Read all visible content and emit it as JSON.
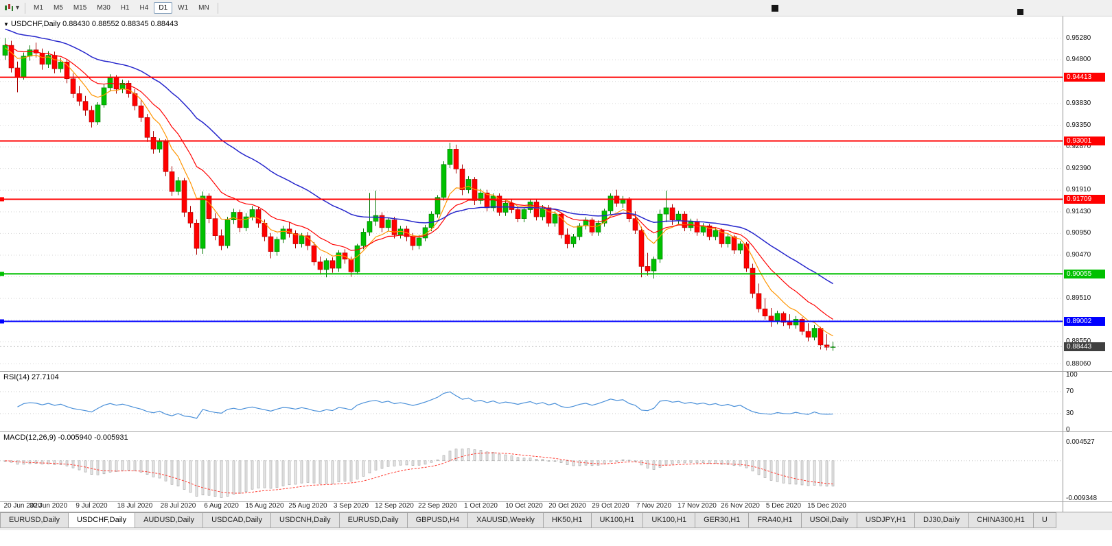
{
  "toolbar": {
    "timeframes": [
      "M1",
      "M5",
      "M15",
      "M30",
      "H1",
      "H4",
      "D1",
      "W1",
      "MN"
    ],
    "active_timeframe": "D1"
  },
  "chart": {
    "title_text": "USDCHF,Daily 0.88430 0.88552 0.88345 0.88443",
    "symbol": "USDCHF",
    "period": "Daily",
    "open": "0.88430",
    "high": "0.88552",
    "low": "0.88345",
    "close": "0.88443"
  },
  "colors": {
    "bull": "#00c000",
    "bull_edge": "#007700",
    "bear": "#ff0000",
    "bear_edge": "#aa0000",
    "ma_slow_blue": "#2727cc",
    "ma_mid_red": "#ff0000",
    "ma_fast_orange": "#ff9500",
    "rsi_line": "#4a90d9",
    "macd_signal": "#ff3b30",
    "grid": "#d4d4d4",
    "level_red": "#ff0000",
    "level_green": "#00c000",
    "level_blue": "#0000ff",
    "current_badge": "#3f3f3f"
  },
  "price_axis": {
    "gridlines": [
      "0.95280",
      "0.94800",
      "0.94320",
      "0.93830",
      "0.93350",
      "0.92870",
      "0.92390",
      "0.91910",
      "0.91430",
      "0.90950",
      "0.90470",
      "0.89990",
      "0.89510",
      "0.89030",
      "0.88550",
      "0.88060"
    ],
    "badges": [
      {
        "text": "0.94413",
        "price": 0.94413,
        "color": "#ff0000",
        "kind": "resistance"
      },
      {
        "text": "0.93001",
        "price": 0.93001,
        "color": "#ff0000",
        "kind": "resistance"
      },
      {
        "text": "0.91709",
        "price": 0.91709,
        "color": "#ff0000",
        "kind": "resistance"
      },
      {
        "text": "0.90055",
        "price": 0.90055,
        "color": "#00c000",
        "kind": "support"
      },
      {
        "text": "0.89002",
        "price": 0.89002,
        "color": "#0000ff",
        "kind": "support"
      },
      {
        "text": "0.88443",
        "price": 0.88443,
        "color": "#3f3f3f",
        "kind": "current-price"
      }
    ]
  },
  "levels": [
    {
      "price": 0.94413,
      "color": "#ff0000",
      "handle": false
    },
    {
      "price": 0.93001,
      "color": "#ff0000",
      "handle": false
    },
    {
      "price": 0.91709,
      "color": "#ff0000",
      "handle": true
    },
    {
      "price": 0.90055,
      "color": "#00c000",
      "handle": true
    },
    {
      "price": 0.89002,
      "color": "#0000ff",
      "handle": true
    }
  ],
  "current_price": 0.88443,
  "indicators": {
    "rsi": {
      "label": "RSI(14) 27.7104",
      "name": "RSI",
      "period": 14,
      "value": "27.7104",
      "scale_labels": [
        "100",
        "70",
        "30",
        "0"
      ],
      "level_lines": [
        70,
        30
      ]
    },
    "macd": {
      "label": "MACD(12,26,9) -0.005940 -0.005931",
      "name": "MACD",
      "params": "12,26,9",
      "main_value": "-0.005940",
      "signal_value": "-0.005931",
      "scale_labels": [
        "0.004527",
        "-0.009348"
      ]
    }
  },
  "date_axis": {
    "labels": [
      "20 Jun 2020",
      "30 Jun 2020",
      "9 Jul 2020",
      "18 Jul 2020",
      "28 Jul 2020",
      "6 Aug 2020",
      "15 Aug 2020",
      "25 Aug 2020",
      "3 Sep 2020",
      "12 Sep 2020",
      "22 Sep 2020",
      "1 Oct 2020",
      "10 Oct 2020",
      "20 Oct 2020",
      "29 Oct 2020",
      "7 Nov 2020",
      "17 Nov 2020",
      "26 Nov 2020",
      "5 Dec 2020",
      "15 Dec 2020"
    ],
    "candle_indices": [
      0,
      7,
      14,
      21,
      28,
      35,
      42,
      49,
      56,
      63,
      70,
      77,
      84,
      91,
      98,
      105,
      112,
      119,
      126,
      133
    ]
  },
  "tabs": {
    "items": [
      "EURUSD,Daily",
      "USDCHF,Daily",
      "AUDUSD,Daily",
      "USDCAD,Daily",
      "USDCNH,Daily",
      "EURUSD,Daily",
      "GBPUSD,H4",
      "XAUUSD,Weekly",
      "HK50,H1",
      "UK100,H1",
      "UK100,H1",
      "GER30,H1",
      "FRA40,H1",
      "USOil,Daily",
      "USDJPY,H1",
      "DJ30,Daily",
      "CHINA300,H1",
      "U"
    ],
    "active_index": 1
  },
  "chart_data": {
    "type": "candlestick",
    "symbol": "USDCHF",
    "timeframe": "Daily",
    "ylim": [
      0.879,
      0.9576
    ],
    "candles": [
      [
        0.949,
        0.9528,
        0.948,
        0.9512
      ],
      [
        0.9512,
        0.9522,
        0.9452,
        0.9462
      ],
      [
        0.9462,
        0.9476,
        0.9408,
        0.9442
      ],
      [
        0.9442,
        0.9496,
        0.9436,
        0.9488
      ],
      [
        0.9488,
        0.9512,
        0.9478,
        0.9502
      ],
      [
        0.9502,
        0.9518,
        0.9485,
        0.9495
      ],
      [
        0.9495,
        0.9505,
        0.9458,
        0.947
      ],
      [
        0.947,
        0.9499,
        0.9462,
        0.949
      ],
      [
        0.949,
        0.9498,
        0.945,
        0.946
      ],
      [
        0.946,
        0.9484,
        0.9452,
        0.9475
      ],
      [
        0.9475,
        0.9481,
        0.9428,
        0.9438
      ],
      [
        0.9438,
        0.945,
        0.9395,
        0.9405
      ],
      [
        0.9405,
        0.9422,
        0.9378,
        0.9388
      ],
      [
        0.9388,
        0.94,
        0.9356,
        0.9368
      ],
      [
        0.9368,
        0.9378,
        0.933,
        0.9342
      ],
      [
        0.9342,
        0.9386,
        0.9336,
        0.938
      ],
      [
        0.938,
        0.9426,
        0.9374,
        0.9418
      ],
      [
        0.9418,
        0.9448,
        0.941,
        0.944
      ],
      [
        0.944,
        0.9446,
        0.9405,
        0.9415
      ],
      [
        0.9415,
        0.9436,
        0.9406,
        0.9428
      ],
      [
        0.9428,
        0.9434,
        0.9396,
        0.9405
      ],
      [
        0.9405,
        0.9415,
        0.9368,
        0.9378
      ],
      [
        0.9378,
        0.939,
        0.9342,
        0.9352
      ],
      [
        0.9352,
        0.936,
        0.9298,
        0.9308
      ],
      [
        0.9308,
        0.9322,
        0.9272,
        0.9282
      ],
      [
        0.9282,
        0.9306,
        0.9274,
        0.9298
      ],
      [
        0.9298,
        0.9304,
        0.9222,
        0.9232
      ],
      [
        0.9232,
        0.9244,
        0.9178,
        0.9188
      ],
      [
        0.9188,
        0.922,
        0.918,
        0.9212
      ],
      [
        0.9212,
        0.9218,
        0.9132,
        0.9142
      ],
      [
        0.9142,
        0.9156,
        0.9108,
        0.9118
      ],
      [
        0.9118,
        0.9126,
        0.9048,
        0.9062
      ],
      [
        0.9062,
        0.9188,
        0.905,
        0.9178
      ],
      [
        0.9178,
        0.9184,
        0.9118,
        0.9128
      ],
      [
        0.9128,
        0.914,
        0.908,
        0.909
      ],
      [
        0.909,
        0.9104,
        0.9058,
        0.9068
      ],
      [
        0.9068,
        0.9132,
        0.9062,
        0.9125
      ],
      [
        0.9125,
        0.915,
        0.9116,
        0.9142
      ],
      [
        0.9142,
        0.9148,
        0.9098,
        0.9108
      ],
      [
        0.9108,
        0.914,
        0.91,
        0.9132
      ],
      [
        0.9132,
        0.9156,
        0.9124,
        0.9148
      ],
      [
        0.9148,
        0.9154,
        0.9108,
        0.9118
      ],
      [
        0.9118,
        0.9126,
        0.9078,
        0.9088
      ],
      [
        0.9088,
        0.9096,
        0.904,
        0.9055
      ],
      [
        0.9055,
        0.9088,
        0.9046,
        0.9082
      ],
      [
        0.9082,
        0.9112,
        0.9074,
        0.9105
      ],
      [
        0.9105,
        0.912,
        0.9086,
        0.9095
      ],
      [
        0.9095,
        0.9102,
        0.9062,
        0.9072
      ],
      [
        0.9072,
        0.9096,
        0.9064,
        0.909
      ],
      [
        0.909,
        0.9098,
        0.9058,
        0.9068
      ],
      [
        0.9068,
        0.9076,
        0.9024,
        0.9032
      ],
      [
        0.9032,
        0.9044,
        0.9004,
        0.9015
      ],
      [
        0.9015,
        0.904,
        0.8998,
        0.9035
      ],
      [
        0.9035,
        0.9042,
        0.9008,
        0.9018
      ],
      [
        0.9018,
        0.9058,
        0.901,
        0.9052
      ],
      [
        0.9052,
        0.906,
        0.9028,
        0.9038
      ],
      [
        0.9038,
        0.9044,
        0.8999,
        0.901
      ],
      [
        0.901,
        0.9072,
        0.9004,
        0.9068
      ],
      [
        0.9068,
        0.9106,
        0.906,
        0.9098
      ],
      [
        0.9098,
        0.9185,
        0.909,
        0.9122
      ],
      [
        0.9122,
        0.919,
        0.9112,
        0.9135
      ],
      [
        0.9135,
        0.9142,
        0.9098,
        0.9108
      ],
      [
        0.9108,
        0.913,
        0.91,
        0.9125
      ],
      [
        0.9125,
        0.9132,
        0.9084,
        0.9092
      ],
      [
        0.9092,
        0.9112,
        0.9084,
        0.9105
      ],
      [
        0.9105,
        0.9112,
        0.9078,
        0.9088
      ],
      [
        0.9088,
        0.9096,
        0.9058,
        0.9068
      ],
      [
        0.9068,
        0.9092,
        0.906,
        0.9085
      ],
      [
        0.9085,
        0.9114,
        0.9078,
        0.9108
      ],
      [
        0.9108,
        0.9144,
        0.91,
        0.9138
      ],
      [
        0.9138,
        0.918,
        0.913,
        0.9175
      ],
      [
        0.9175,
        0.9255,
        0.9168,
        0.9248
      ],
      [
        0.9248,
        0.9296,
        0.924,
        0.9282
      ],
      [
        0.9282,
        0.9292,
        0.9228,
        0.9238
      ],
      [
        0.9238,
        0.9248,
        0.918,
        0.9192
      ],
      [
        0.9192,
        0.9222,
        0.9184,
        0.9215
      ],
      [
        0.9215,
        0.922,
        0.9158,
        0.9168
      ],
      [
        0.9168,
        0.9194,
        0.916,
        0.9185
      ],
      [
        0.9185,
        0.9192,
        0.9144,
        0.9152
      ],
      [
        0.9152,
        0.9184,
        0.9144,
        0.9178
      ],
      [
        0.9178,
        0.9184,
        0.9134,
        0.9142
      ],
      [
        0.9142,
        0.9168,
        0.9134,
        0.9162
      ],
      [
        0.9162,
        0.917,
        0.914,
        0.9148
      ],
      [
        0.9148,
        0.9156,
        0.912,
        0.9128
      ],
      [
        0.9128,
        0.9154,
        0.912,
        0.9148
      ],
      [
        0.9148,
        0.9172,
        0.914,
        0.9165
      ],
      [
        0.9165,
        0.917,
        0.9124,
        0.9132
      ],
      [
        0.9132,
        0.9158,
        0.9124,
        0.9152
      ],
      [
        0.9152,
        0.9158,
        0.911,
        0.9118
      ],
      [
        0.9118,
        0.9144,
        0.911,
        0.9138
      ],
      [
        0.9138,
        0.9142,
        0.9084,
        0.9092
      ],
      [
        0.9092,
        0.9106,
        0.9062,
        0.9072
      ],
      [
        0.9072,
        0.9094,
        0.9064,
        0.9088
      ],
      [
        0.9088,
        0.9118,
        0.908,
        0.9112
      ],
      [
        0.9112,
        0.9131,
        0.9104,
        0.9125
      ],
      [
        0.9125,
        0.913,
        0.909,
        0.9098
      ],
      [
        0.9098,
        0.9124,
        0.909,
        0.9118
      ],
      [
        0.9118,
        0.915,
        0.911,
        0.9145
      ],
      [
        0.9145,
        0.9184,
        0.9138,
        0.9178
      ],
      [
        0.9178,
        0.9192,
        0.9154,
        0.9162
      ],
      [
        0.9162,
        0.9178,
        0.9152,
        0.9172
      ],
      [
        0.9172,
        0.9176,
        0.912,
        0.9128
      ],
      [
        0.9128,
        0.9144,
        0.9094,
        0.9102
      ],
      [
        0.9102,
        0.911,
        0.8998,
        0.9022
      ],
      [
        0.9022,
        0.9052,
        0.9002,
        0.9012
      ],
      [
        0.9012,
        0.9044,
        0.8995,
        0.9038
      ],
      [
        0.9038,
        0.9148,
        0.903,
        0.9138
      ],
      [
        0.9138,
        0.919,
        0.912,
        0.9152
      ],
      [
        0.9152,
        0.916,
        0.9114,
        0.9125
      ],
      [
        0.9125,
        0.9145,
        0.9116,
        0.9138
      ],
      [
        0.9138,
        0.9144,
        0.91,
        0.9108
      ],
      [
        0.9108,
        0.9128,
        0.91,
        0.9122
      ],
      [
        0.9122,
        0.9128,
        0.909,
        0.9098
      ],
      [
        0.9098,
        0.9118,
        0.909,
        0.9112
      ],
      [
        0.9112,
        0.9116,
        0.908,
        0.9088
      ],
      [
        0.9088,
        0.9108,
        0.908,
        0.9102
      ],
      [
        0.9102,
        0.9106,
        0.9064,
        0.9072
      ],
      [
        0.9072,
        0.9094,
        0.9064,
        0.9088
      ],
      [
        0.9088,
        0.9092,
        0.905,
        0.9058
      ],
      [
        0.9058,
        0.9078,
        0.905,
        0.9072
      ],
      [
        0.9072,
        0.9076,
        0.901,
        0.9018
      ],
      [
        0.9018,
        0.9028,
        0.8952,
        0.8962
      ],
      [
        0.8962,
        0.8984,
        0.892,
        0.8928
      ],
      [
        0.8928,
        0.8952,
        0.8904,
        0.8912
      ],
      [
        0.8912,
        0.893,
        0.8888,
        0.8902
      ],
      [
        0.8902,
        0.8924,
        0.8894,
        0.8918
      ],
      [
        0.8918,
        0.8922,
        0.889,
        0.8898
      ],
      [
        0.8898,
        0.8916,
        0.8884,
        0.8892
      ],
      [
        0.8892,
        0.8912,
        0.8884,
        0.8905
      ],
      [
        0.8905,
        0.891,
        0.887,
        0.8878
      ],
      [
        0.8878,
        0.8896,
        0.8856,
        0.8865
      ],
      [
        0.8865,
        0.8892,
        0.8858,
        0.8885
      ],
      [
        0.8885,
        0.8888,
        0.8838,
        0.8848
      ],
      [
        0.8848,
        0.8872,
        0.8836,
        0.8843
      ],
      [
        0.8843,
        0.8855,
        0.8835,
        0.8844
      ]
    ]
  }
}
